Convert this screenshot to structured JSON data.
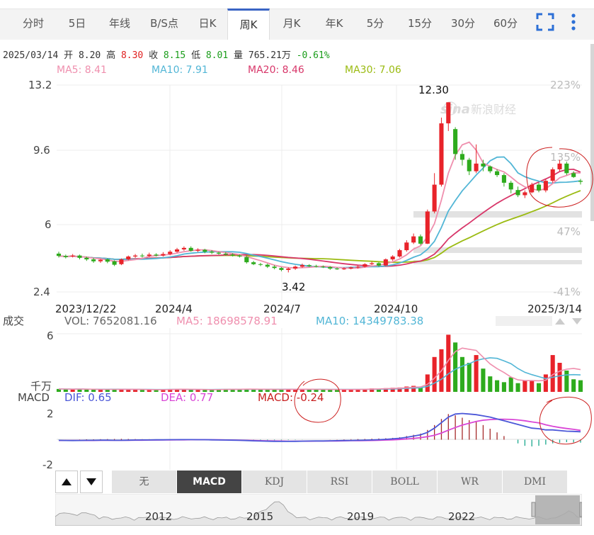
{
  "tabs": [
    {
      "label": "分时",
      "name": "tab-intraday"
    },
    {
      "label": "5日",
      "name": "tab-5day"
    },
    {
      "label": "年线",
      "name": "tab-yearline"
    },
    {
      "label": "B/S点",
      "name": "tab-bs-points"
    },
    {
      "label": "日K",
      "name": "tab-daily-k"
    },
    {
      "label": "周K",
      "name": "tab-weekly-k",
      "active": true
    },
    {
      "label": "月K",
      "name": "tab-monthly-k"
    },
    {
      "label": "年K",
      "name": "tab-yearly-k"
    },
    {
      "label": "5分",
      "name": "tab-5min"
    },
    {
      "label": "15分",
      "name": "tab-15min"
    },
    {
      "label": "30分",
      "name": "tab-30min"
    },
    {
      "label": "60分",
      "name": "tab-60min"
    }
  ],
  "toolbar_icons": [
    "fullscreen-icon",
    "more-vertical-icon"
  ],
  "quote": {
    "date": "2025/03/14",
    "open_label": "开",
    "open": "8.20",
    "high_label": "高",
    "high": "8.30",
    "close_label": "收",
    "close": "8.15",
    "low_label": "低",
    "low": "8.01",
    "volume_label": "量",
    "volume": "765.21万",
    "change": "-0.61%"
  },
  "ma": [
    {
      "label": "MA5: 8.41",
      "color": "#ef8fae"
    },
    {
      "label": "MA10: 7.91",
      "color": "#52b6d6"
    },
    {
      "label": "MA20: 8.46",
      "color": "#d8376a"
    },
    {
      "label": "MA30: 7.06",
      "color": "#9bbb12"
    }
  ],
  "volume_header": {
    "title": "成交",
    "vol": "VOL: 7652081.16",
    "ma5": "MA5: 18698578.91",
    "ma10": "MA10: 14349783.38",
    "top": "6",
    "unit": "千万"
  },
  "macd_header": {
    "title": "MACD",
    "dif": "DIF: 0.65",
    "dea": "DEA: 0.77",
    "macd": "MACD: -0.24",
    "dif_color": "#4b57d8",
    "dea_color": "#d946d6",
    "macd_color": "#c82020"
  },
  "price_axis": {
    "ticks": [
      "13.2",
      "9.6",
      "6",
      "2.4"
    ],
    "pct_ticks": [
      "223%",
      "135%",
      "47%",
      "-41%"
    ],
    "annotations": {
      "high": "12.30",
      "low": "3.42"
    }
  },
  "time_axis": [
    "2023/12/22",
    "2024/4",
    "2024/7",
    "2024/10",
    "2025/3/14"
  ],
  "macd_axis": [
    "2",
    "-2"
  ],
  "watermark": {
    "brand": "sina",
    "text": "新浪财经"
  },
  "indicator_tabs": [
    {
      "label": "无",
      "name": "indicator-tab-none"
    },
    {
      "label": "MACD",
      "name": "indicator-tab-macd",
      "active": true
    },
    {
      "label": "KDJ",
      "name": "indicator-tab-kdj"
    },
    {
      "label": "RSI",
      "name": "indicator-tab-rsi"
    },
    {
      "label": "BOLL",
      "name": "indicator-tab-boll"
    },
    {
      "label": "WR",
      "name": "indicator-tab-wr"
    },
    {
      "label": "DMI",
      "name": "indicator-tab-dmi"
    }
  ],
  "navigator_years": [
    "2012",
    "2015",
    "2019",
    "2022"
  ],
  "chart_data": {
    "type": "candlestick",
    "ylim": [
      2.4,
      13.2
    ],
    "x_categories_start": "2023/12/22",
    "x_categories_end": "2025/3/14",
    "candles": [
      [
        4.4,
        4.28,
        4.5,
        4.2
      ],
      [
        4.28,
        4.22,
        4.35,
        4.15
      ],
      [
        4.25,
        4.3,
        4.38,
        4.2
      ],
      [
        4.3,
        4.18,
        4.35,
        4.1
      ],
      [
        4.18,
        4.1,
        4.25,
        4.02
      ],
      [
        4.1,
        4.0,
        4.18,
        3.92
      ],
      [
        4.0,
        4.08,
        4.12,
        3.92
      ],
      [
        4.1,
        3.98,
        4.15,
        3.9
      ],
      [
        4.0,
        3.82,
        4.05,
        3.75
      ],
      [
        3.85,
        4.1,
        4.15,
        3.8
      ],
      [
        4.1,
        4.25,
        4.3,
        4.05
      ],
      [
        4.25,
        4.3,
        4.38,
        4.18
      ],
      [
        4.3,
        4.28,
        4.4,
        4.2
      ],
      [
        4.28,
        4.35,
        4.45,
        4.22
      ],
      [
        4.35,
        4.3,
        4.42,
        4.25
      ],
      [
        4.3,
        4.38,
        4.48,
        4.25
      ],
      [
        4.38,
        4.5,
        4.58,
        4.32
      ],
      [
        4.5,
        4.62,
        4.7,
        4.45
      ],
      [
        4.62,
        4.7,
        4.78,
        4.55
      ],
      [
        4.7,
        4.55,
        4.78,
        4.5
      ],
      [
        4.55,
        4.6,
        4.68,
        4.48
      ],
      [
        4.6,
        4.5,
        4.65,
        4.42
      ],
      [
        4.5,
        4.45,
        4.58,
        4.38
      ],
      [
        4.45,
        4.4,
        4.5,
        4.35
      ],
      [
        4.4,
        4.35,
        4.48,
        4.3
      ],
      [
        4.35,
        4.3,
        4.42,
        4.25
      ],
      [
        4.3,
        4.25,
        4.35,
        4.2
      ],
      [
        4.22,
        3.95,
        4.3,
        3.88
      ],
      [
        3.95,
        3.85,
        4.02,
        3.8
      ],
      [
        3.85,
        3.82,
        3.92,
        3.75
      ],
      [
        3.82,
        3.72,
        3.88,
        3.65
      ],
      [
        3.72,
        3.65,
        3.8,
        3.58
      ],
      [
        3.65,
        3.55,
        3.7,
        3.48
      ],
      [
        3.55,
        3.62,
        3.68,
        3.42
      ],
      [
        3.62,
        3.72,
        3.78,
        3.55
      ],
      [
        3.72,
        3.8,
        3.88,
        3.66
      ],
      [
        3.8,
        3.75,
        3.85,
        3.7
      ],
      [
        3.75,
        3.72,
        3.82,
        3.68
      ],
      [
        3.72,
        3.7,
        3.78,
        3.65
      ],
      [
        3.7,
        3.62,
        3.75,
        3.55
      ],
      [
        3.62,
        3.6,
        3.68,
        3.55
      ],
      [
        3.6,
        3.62,
        3.68,
        3.55
      ],
      [
        3.62,
        3.68,
        3.72,
        3.58
      ],
      [
        3.68,
        3.72,
        3.78,
        3.62
      ],
      [
        3.72,
        3.85,
        3.9,
        3.68
      ],
      [
        3.85,
        3.9,
        3.98,
        3.8
      ],
      [
        3.9,
        3.78,
        3.95,
        3.72
      ],
      [
        3.78,
        4.1,
        4.15,
        3.75
      ],
      [
        4.1,
        4.25,
        4.32,
        4.02
      ],
      [
        4.25,
        4.58,
        4.65,
        4.2
      ],
      [
        4.58,
        4.98,
        5.1,
        4.5
      ],
      [
        4.98,
        5.3,
        5.45,
        4.9
      ],
      [
        5.3,
        4.92,
        5.4,
        4.85
      ],
      [
        4.92,
        6.6,
        6.7,
        4.9
      ],
      [
        6.6,
        8.0,
        8.6,
        6.5
      ],
      [
        8.0,
        11.2,
        11.5,
        7.9
      ],
      [
        11.2,
        12.3,
        12.3,
        10.8
      ],
      [
        10.9,
        9.6,
        11.0,
        9.3
      ],
      [
        9.6,
        9.3,
        9.8,
        9.0
      ],
      [
        9.3,
        8.7,
        9.4,
        8.5
      ],
      [
        8.7,
        9.1,
        10.1,
        8.6
      ],
      [
        9.1,
        8.95,
        9.3,
        8.7
      ],
      [
        8.95,
        8.7,
        9.0,
        8.6
      ],
      [
        8.7,
        8.5,
        8.8,
        8.4
      ],
      [
        8.5,
        8.1,
        8.6,
        7.9
      ],
      [
        8.1,
        7.75,
        8.2,
        7.55
      ],
      [
        7.72,
        7.45,
        7.9,
        7.35
      ],
      [
        7.45,
        7.6,
        7.7,
        7.3
      ],
      [
        7.6,
        8.0,
        8.1,
        7.55
      ],
      [
        8.0,
        7.7,
        8.1,
        7.6
      ],
      [
        7.7,
        8.2,
        8.3,
        7.6
      ],
      [
        8.2,
        8.8,
        8.9,
        8.1
      ],
      [
        8.8,
        9.1,
        9.3,
        8.7
      ],
      [
        9.1,
        8.6,
        9.2,
        8.5
      ],
      [
        8.6,
        8.4,
        8.7,
        8.35
      ],
      [
        8.2,
        8.15,
        8.3,
        8.01
      ]
    ],
    "volume_ylim": [
      0,
      6
    ],
    "volume": [
      0.3,
      0.28,
      0.25,
      0.3,
      0.27,
      0.24,
      0.22,
      0.26,
      0.3,
      0.28,
      0.25,
      0.22,
      0.2,
      0.22,
      0.24,
      0.26,
      0.28,
      0.3,
      0.26,
      0.22,
      0.2,
      0.22,
      0.25,
      0.28,
      0.3,
      0.26,
      0.24,
      0.3,
      0.28,
      0.26,
      0.25,
      0.24,
      0.26,
      0.3,
      0.28,
      0.26,
      0.24,
      0.25,
      0.26,
      0.24,
      0.22,
      0.24,
      0.26,
      0.28,
      0.3,
      0.35,
      0.32,
      0.38,
      0.42,
      0.45,
      0.55,
      0.62,
      0.5,
      1.8,
      3.6,
      4.4,
      5.9,
      5.1,
      3.6,
      3.0,
      3.8,
      2.4,
      1.6,
      1.2,
      1.0,
      1.5,
      0.9,
      1.2,
      1.2,
      0.9,
      1.8,
      3.8,
      3.0,
      2.2,
      1.3,
      1.2
    ],
    "macd_ylim": [
      -2,
      2.7
    ],
    "macd_bars": [
      -0.02,
      -0.01,
      0.0,
      0.02,
      0.03,
      0.03,
      0.04,
      0.05,
      0.06,
      0.07,
      0.06,
      0.05,
      0.04,
      0.04,
      0.03,
      0.03,
      0.03,
      0.04,
      0.04,
      0.03,
      0.02,
      0.02,
      0.01,
      0.01,
      0.0,
      -0.01,
      -0.02,
      -0.03,
      -0.04,
      -0.05,
      -0.05,
      -0.04,
      -0.04,
      -0.03,
      -0.02,
      -0.01,
      0.0,
      0.0,
      0.0,
      0.01,
      0.02,
      0.03,
      0.04,
      0.05,
      0.06,
      0.08,
      0.1,
      0.12,
      0.15,
      0.2,
      0.3,
      0.4,
      0.5,
      0.8,
      1.2,
      1.7,
      2.1,
      2.0,
      1.8,
      1.6,
      1.5,
      1.2,
      0.9,
      0.6,
      0.3,
      0.0,
      -0.3,
      -0.5,
      -0.55,
      -0.5,
      -0.4,
      -0.3,
      -0.25,
      -0.2,
      -0.22,
      -0.24
    ],
    "dif": [
      -0.05,
      -0.06,
      -0.07,
      -0.06,
      -0.05,
      -0.05,
      -0.04,
      -0.04,
      -0.05,
      -0.05,
      -0.04,
      -0.03,
      -0.02,
      -0.02,
      -0.01,
      -0.01,
      0.0,
      0.0,
      0.01,
      0.01,
      0.0,
      0.0,
      -0.01,
      -0.02,
      -0.03,
      -0.04,
      -0.05,
      -0.07,
      -0.09,
      -0.11,
      -0.12,
      -0.13,
      -0.14,
      -0.14,
      -0.13,
      -0.12,
      -0.11,
      -0.1,
      -0.1,
      -0.09,
      -0.08,
      -0.07,
      -0.06,
      -0.05,
      -0.04,
      -0.02,
      0.0,
      0.03,
      0.07,
      0.12,
      0.2,
      0.3,
      0.4,
      0.6,
      0.95,
      1.4,
      1.85,
      2.1,
      2.15,
      2.1,
      2.05,
      1.95,
      1.85,
      1.7,
      1.55,
      1.4,
      1.25,
      1.1,
      0.95,
      0.9,
      0.8,
      0.8,
      0.75,
      0.7,
      0.68,
      0.65
    ],
    "dea": [
      -0.06,
      -0.06,
      -0.06,
      -0.06,
      -0.06,
      -0.06,
      -0.05,
      -0.05,
      -0.05,
      -0.05,
      -0.05,
      -0.04,
      -0.04,
      -0.03,
      -0.03,
      -0.02,
      -0.02,
      -0.01,
      -0.01,
      0.0,
      0.0,
      0.0,
      -0.01,
      -0.01,
      -0.02,
      -0.03,
      -0.04,
      -0.05,
      -0.06,
      -0.08,
      -0.09,
      -0.1,
      -0.11,
      -0.12,
      -0.12,
      -0.12,
      -0.12,
      -0.11,
      -0.11,
      -0.1,
      -0.1,
      -0.09,
      -0.08,
      -0.08,
      -0.07,
      -0.06,
      -0.05,
      -0.03,
      -0.01,
      0.02,
      0.06,
      0.11,
      0.17,
      0.25,
      0.37,
      0.55,
      0.78,
      1.0,
      1.2,
      1.35,
      1.5,
      1.6,
      1.65,
      1.68,
      1.68,
      1.66,
      1.62,
      1.55,
      1.46,
      1.38,
      1.22,
      1.1,
      1.0,
      0.92,
      0.85,
      0.77
    ]
  }
}
